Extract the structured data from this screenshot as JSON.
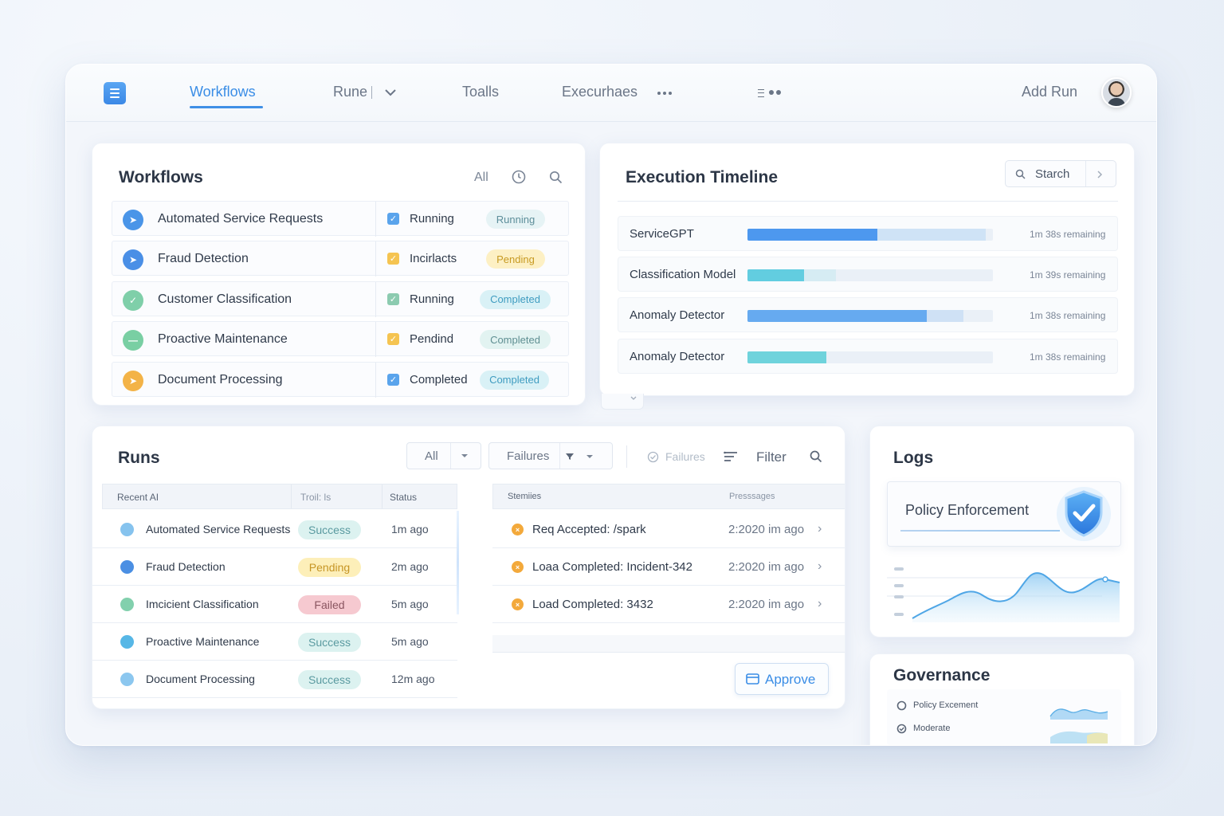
{
  "nav": {
    "items": [
      "Workflows",
      "Rune",
      "Toalls",
      "Execurhaes"
    ],
    "add_run": "Add Run"
  },
  "workflows": {
    "title": "Workflows",
    "filter_all": "All",
    "rows": [
      {
        "name": "Automated Service Requests",
        "status": "Running",
        "pill": "Running",
        "icon": "arrow-icon",
        "icon_color": "#4a95e8",
        "check_color": "#5aa4ec",
        "pill_bg": "#e6f3f5",
        "pill_fg": "#5d8e9a"
      },
      {
        "name": "Fraud Detection",
        "status": "Incirlacts",
        "pill": "Pending",
        "icon": "arrow-icon",
        "icon_color": "#4a8fe6",
        "check_color": "#f5c451",
        "pill_bg": "#fdf0c4",
        "pill_fg": "#c79a22"
      },
      {
        "name": "Customer Classification",
        "status": "Running",
        "pill": "Completed",
        "icon": "check-icon",
        "icon_color": "#7fcfa9",
        "check_color": "#8ccbb0",
        "pill_bg": "#d9f1f6",
        "pill_fg": "#3f9cc0"
      },
      {
        "name": "Proactive Maintenance",
        "status": "Pendind",
        "pill": "Completed",
        "icon": "dash-icon",
        "icon_color": "#79cfa3",
        "check_color": "#f5c451",
        "pill_bg": "#e2f3f1",
        "pill_fg": "#5f8f92"
      },
      {
        "name": "Document Processing",
        "status": "Completed",
        "pill": "Completed",
        "icon": "arrow-icon",
        "icon_color": "#f3b347",
        "check_color": "#5aa4ec",
        "pill_bg": "#d9f1f6",
        "pill_fg": "#3f9cc0"
      }
    ]
  },
  "timeline": {
    "title": "Execution Timeline",
    "search_label": "Starch",
    "rows": [
      {
        "name": "ServiceGPT",
        "fill": 0.53,
        "light": 0.97,
        "fill_color": "#4d98ef",
        "light_color": "#cfe3f6",
        "remaining": "1m 38s remaining"
      },
      {
        "name": "Classification Model",
        "fill": 0.23,
        "light": 0.36,
        "fill_color": "#62cde0",
        "light_color": "#d6ecf3",
        "remaining": "1m 39s remaining"
      },
      {
        "name": "Anomaly Detector",
        "fill": 0.73,
        "light": 0.88,
        "fill_color": "#66aaf0",
        "light_color": "#cfe1f5",
        "remaining": "1m 38s remaining"
      },
      {
        "name": "Anomaly Detector",
        "fill": 0.32,
        "light": 0.32,
        "fill_color": "#6fd3dc",
        "light_color": "#d6eef2",
        "remaining": "1m 38s remaining"
      }
    ]
  },
  "runs": {
    "title": "Runs",
    "filter_all": "All",
    "filter_failures": "Failures",
    "failures_toggle": "Failures",
    "filter_label": "Filter",
    "approve_label": "Approve",
    "headers": [
      "Recent AI",
      "Troil: ls",
      "Status"
    ],
    "rows": [
      {
        "name": "Automated Service Requests",
        "status": "Success",
        "time": "1m ago",
        "icon_color": "#86c3ee",
        "pill_bg": "#dcf2f0",
        "pill_fg": "#5a9aa0"
      },
      {
        "name": "Fraud Detection",
        "status": "Pending",
        "time": "2m ago",
        "icon_color": "#4b8fe3",
        "pill_bg": "#fdefb9",
        "pill_fg": "#c69525"
      },
      {
        "name": "Imcicient Classification",
        "status": "Failed",
        "time": "5m ago",
        "icon_color": "#82d0ad",
        "pill_bg": "#f6c9d0",
        "pill_fg": "#8a5560"
      },
      {
        "name": "Proactive Maintenance",
        "status": "Success",
        "time": "5m ago",
        "icon_color": "#57b7e6",
        "pill_bg": "#dcf2f0",
        "pill_fg": "#5a9aa0"
      },
      {
        "name": "Document Processing",
        "status": "Success",
        "time": "12m ago",
        "icon_color": "#8cc7ef",
        "pill_bg": "#dcf2f0",
        "pill_fg": "#5a9aa0"
      }
    ],
    "log_headers": [
      "Stemiies",
      "Presssages"
    ],
    "log_rows": [
      {
        "message": "Req Accepted: /spark",
        "time": "2:2020 im ago"
      },
      {
        "message": "Loaa Completed: Incident-342",
        "time": "2:2020 im ago"
      },
      {
        "message": "Load Completed: 3432",
        "time": "2:2020 im ago"
      }
    ]
  },
  "logs": {
    "title": "Logs",
    "policy_label": "Policy Enforcement"
  },
  "governance": {
    "title": "Governance",
    "items": [
      "Policy Excement",
      "Moderate"
    ]
  },
  "colors": {
    "accent": "#3a8de6",
    "success": "#5a9aa0",
    "pending": "#c69525",
    "failed": "#8a5560"
  }
}
